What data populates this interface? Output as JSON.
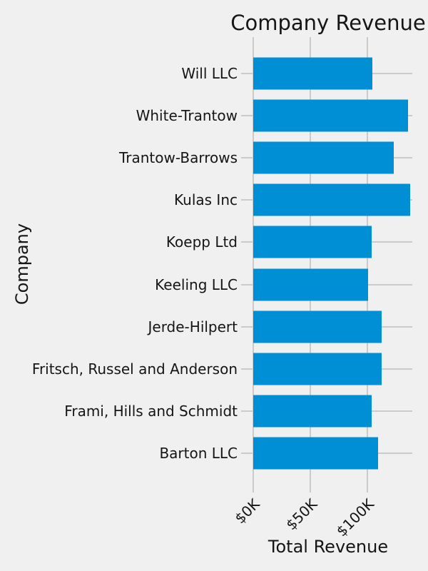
{
  "chart_data": {
    "type": "bar",
    "orientation": "horizontal",
    "title": "Company Revenue",
    "xlabel": "Total Revenue",
    "ylabel": "Company",
    "categories_top_to_bottom": [
      "Will LLC",
      "White-Trantow",
      "Trantow-Barrows",
      "Kulas Inc",
      "Koepp Ltd",
      "Keeling LLC",
      "Jerde-Hilpert",
      "Fritsch, Russel and Anderson",
      "Frami, Hills and Schmidt",
      "Barton LLC"
    ],
    "values": [
      104438,
      135842,
      123381,
      137352,
      103661,
      100934,
      112591,
      112215,
      103570,
      109439
    ],
    "x_ticks": [
      {
        "label": "$0K",
        "value": 0
      },
      {
        "label": "$50K",
        "value": 50000
      },
      {
        "label": "$100K",
        "value": 100000
      }
    ],
    "xlim": [
      0,
      139400
    ],
    "grid": true,
    "legend_position": "none",
    "colors": {
      "bar": "#008fd5",
      "background": "#f0f0f0",
      "grid": "#cbcbcb",
      "text": "#151515"
    }
  }
}
